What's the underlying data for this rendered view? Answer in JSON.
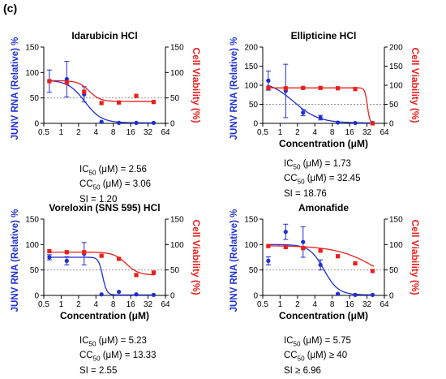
{
  "panel_label": "(c)",
  "colors": {
    "rna": "#1f2fd1",
    "viability": "#e8201c",
    "axis": "#000000",
    "ref_line": "#8a8a8a"
  },
  "chart_data": [
    {
      "type": "scatter",
      "title": "Idarubicin HCl",
      "xlabel": "",
      "ylabel_left": "JUNV RNA (Relative) %",
      "ylabel_right": "Cell Viability (%)",
      "x_scale": "log2",
      "x_ticks": [
        "0.5",
        "1",
        "2",
        "4",
        "8",
        "16",
        "32",
        "64"
      ],
      "xlim": [
        0.5,
        64
      ],
      "y_ticks": [
        0,
        50,
        100,
        150
      ],
      "ylim": [
        0,
        150
      ],
      "reference_line": 50,
      "series": [
        {
          "key": "rna",
          "x": [
            0.625,
            1.25,
            2.5,
            5,
            10,
            20,
            40
          ],
          "y": [
            83,
            87,
            57,
            3,
            1,
            1,
            1
          ],
          "err": [
            22,
            35,
            15,
            0,
            0,
            0,
            0
          ],
          "fit": {
            "top": 85,
            "bottom": 1,
            "ec50": 2.56,
            "hill": 3.0
          }
        },
        {
          "key": "viability",
          "x": [
            0.625,
            1.25,
            2.5,
            5,
            10,
            20,
            40
          ],
          "y": [
            83,
            80,
            62,
            40,
            41,
            54,
            42
          ],
          "err": [
            0,
            0,
            0,
            0,
            0,
            0,
            0
          ],
          "fit": {
            "top": 84,
            "bottom": 43,
            "ec50": 3.06,
            "hill": 4.5
          }
        }
      ],
      "stats": {
        "ic50": "IC50 (μM) = 2.56",
        "cc50": "CC50 (μM) = 3.06",
        "si": "SI = 1.20"
      }
    },
    {
      "type": "scatter",
      "title": "Ellipticine HCl",
      "xlabel": "Concentration (μM)",
      "ylabel_left": "JUNV RNA (Relative) %",
      "ylabel_right": "Cell Viability (%)",
      "x_scale": "log2",
      "x_ticks": [
        "0.5",
        "1",
        "2",
        "4",
        "8",
        "16",
        "32",
        "64"
      ],
      "xlim": [
        0.5,
        64
      ],
      "y_ticks": [
        0,
        50,
        100,
        150,
        200
      ],
      "ylim": [
        0,
        200
      ],
      "reference_line": 50,
      "series": [
        {
          "key": "rna",
          "x": [
            0.625,
            1.25,
            2.5,
            5,
            10,
            20,
            40
          ],
          "y": [
            112,
            85,
            28,
            15,
            2,
            1,
            1
          ],
          "err": [
            25,
            70,
            8,
            6,
            0,
            0,
            0
          ],
          "fit": {
            "top": 112,
            "bottom": 1,
            "ec50": 1.73,
            "hill": 2.0
          }
        },
        {
          "key": "viability",
          "x": [
            0.625,
            1.25,
            2.5,
            5,
            10,
            20,
            40
          ],
          "y": [
            93,
            92,
            93,
            93,
            92,
            90,
            0
          ],
          "err": [
            0,
            0,
            0,
            0,
            0,
            0,
            0
          ],
          "fit": {
            "top": 93,
            "bottom": 0,
            "ec50": 32.45,
            "hill": 20.0
          }
        }
      ],
      "stats": {
        "ic50": "IC50 (μM) = 1.73",
        "cc50": "CC50 (μM) = 32.45",
        "si": "SI = 18.76"
      }
    },
    {
      "type": "scatter",
      "title": "Voreloxin (SNS 595) HCl",
      "xlabel": "Concentration (μM)",
      "ylabel_left": "JUNV RNA (Relative) %",
      "ylabel_right": "Cell Viability (%)",
      "x_scale": "log2",
      "x_ticks": [
        "0.5",
        "1",
        "2",
        "4",
        "8",
        "16",
        "32",
        "64"
      ],
      "xlim": [
        0.5,
        64
      ],
      "y_ticks": [
        0,
        50,
        100,
        150
      ],
      "ylim": [
        0,
        150
      ],
      "reference_line": 50,
      "series": [
        {
          "key": "rna",
          "x": [
            0.625,
            1.25,
            2.5,
            5,
            10,
            20,
            40
          ],
          "y": [
            75,
            68,
            82,
            2,
            7,
            2,
            1
          ],
          "err": [
            5,
            8,
            22,
            0,
            0,
            0,
            0
          ],
          "fit": {
            "top": 75,
            "bottom": 1,
            "ec50": 5.23,
            "hill": 12.0
          }
        },
        {
          "key": "viability",
          "x": [
            0.625,
            1.25,
            2.5,
            5,
            10,
            20,
            40
          ],
          "y": [
            87,
            85,
            85,
            78,
            72,
            40,
            45
          ],
          "err": [
            0,
            0,
            0,
            0,
            0,
            0,
            0
          ],
          "fit": {
            "top": 85,
            "bottom": 40,
            "ec50": 13.33,
            "hill": 4.0
          }
        }
      ],
      "stats": {
        "ic50": "IC50 (μM) = 5.23",
        "cc50": "CC50 (μM) = 13.33",
        "si": "SI = 2.55"
      }
    },
    {
      "type": "scatter",
      "title": "Amonafide",
      "xlabel": "Concentration (μM)",
      "ylabel_left": "JUNV RNA (Relative) %",
      "ylabel_right": "Cell Viability (%)",
      "x_scale": "log2",
      "x_ticks": [
        "0.5",
        "1",
        "2",
        "4",
        "8",
        "16",
        "32",
        "64"
      ],
      "xlim": [
        0.5,
        64
      ],
      "y_ticks": [
        0,
        50,
        100,
        150
      ],
      "ylim": [
        0,
        150
      ],
      "reference_line": 50,
      "series": [
        {
          "key": "rna",
          "x": [
            0.625,
            1.25,
            2.5,
            5,
            10,
            20,
            40
          ],
          "y": [
            68,
            125,
            105,
            60,
            3,
            1,
            1
          ],
          "err": [
            8,
            15,
            30,
            10,
            0,
            0,
            0
          ],
          "fit": {
            "top": 100,
            "bottom": 1,
            "ec50": 5.75,
            "hill": 3.5
          }
        },
        {
          "key": "viability",
          "x": [
            0.625,
            1.25,
            2.5,
            5,
            10,
            20,
            40
          ],
          "y": [
            97,
            95,
            93,
            88,
            77,
            63,
            48
          ],
          "err": [
            0,
            0,
            0,
            0,
            0,
            0,
            0
          ],
          "fit": {
            "top": 98,
            "bottom": 0,
            "ec50": 55,
            "hill": 1.2
          }
        }
      ],
      "stats": {
        "ic50": "IC50 (μM) = 5.75",
        "cc50": "CC50 (μM) ≥ 40",
        "si": "SI ≥ 6.96"
      }
    }
  ]
}
